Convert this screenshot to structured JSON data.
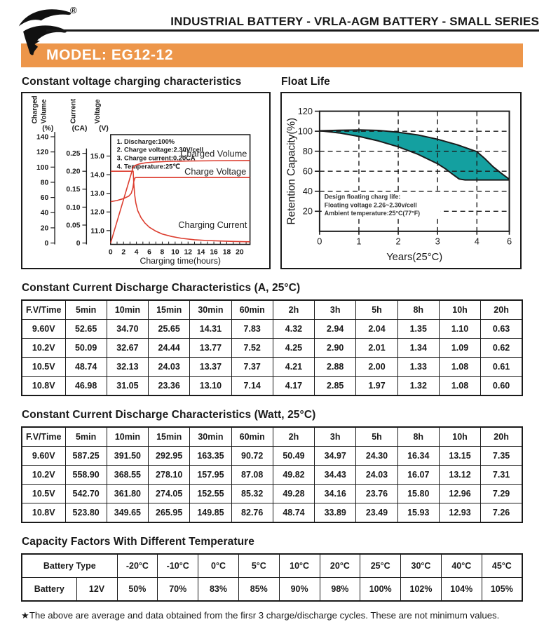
{
  "header": {
    "trademark": "®",
    "title": "INDUSTRIAL BATTERY - VRLA-AGM BATTERY - SMALL SERIES",
    "model": "MODEL: EG12-12"
  },
  "colors": {
    "accent_orange": "#ED964A",
    "band_teal": "#14A0A0",
    "curve_red": "#DC3C2E",
    "ink": "#1A1A1A"
  },
  "chart_data": [
    {
      "type": "line",
      "title": "Constant voltage charging characteristics",
      "x": {
        "label": "Charging time(hours)",
        "ticks": [
          0,
          2,
          4,
          6,
          8,
          10,
          12,
          14,
          16,
          18,
          20
        ],
        "range": [
          0,
          21.6
        ]
      },
      "axes": [
        {
          "name": "volume",
          "title_lines": [
            "Charged",
            "Volume"
          ],
          "unit": "(%)",
          "ticks": [
            0,
            20,
            40,
            60,
            80,
            100,
            120,
            140
          ],
          "tick_labels": [
            "0",
            "20",
            "40",
            "60",
            "80",
            "100",
            "120",
            "140"
          ]
        },
        {
          "name": "current",
          "title_lines": [
            "Current"
          ],
          "unit": "(CA)",
          "ticks": [
            0,
            0.05,
            0.1,
            0.15,
            0.2,
            0.25
          ],
          "tick_labels": [
            "0",
            "0.05",
            "0.10",
            "0.15",
            "0.20",
            "0.25"
          ]
        },
        {
          "name": "voltage",
          "title_lines": [
            "Voltage"
          ],
          "unit": "(V)",
          "ticks": [
            11,
            12,
            13,
            14,
            15
          ],
          "tick_labels": [
            "11.0",
            "12.0",
            "13.0",
            "14.0",
            "15.0"
          ]
        }
      ],
      "notes": [
        "1. Discharge:100%",
        "2. Charge voltage:2.30V/cell",
        "3. Charge current:0.20CA",
        "4. Temperature:25℃"
      ],
      "series": [
        {
          "name": "Charged Volume",
          "axis": "volume",
          "points": [
            [
              0,
              0
            ],
            [
              3.5,
              100
            ],
            [
              3.9,
              102.5
            ],
            [
              4.5,
              104.3
            ],
            [
              5.5,
              105.8
            ],
            [
              7,
              106.8
            ],
            [
              9,
              107.5
            ],
            [
              12,
              108
            ],
            [
              16,
              108.4
            ],
            [
              21.6,
              108.6
            ]
          ]
        },
        {
          "name": "Charge Voltage",
          "axis": "voltage",
          "points": [
            [
              0,
              12.55
            ],
            [
              1,
              12.62
            ],
            [
              2,
              12.72
            ],
            [
              2.8,
              12.85
            ],
            [
              3.2,
              13.0
            ],
            [
              3.45,
              13.3
            ],
            [
              3.6,
              13.65
            ],
            [
              3.75,
              13.82
            ],
            [
              3.9,
              13.85
            ],
            [
              21.6,
              13.85
            ]
          ]
        },
        {
          "name": "Charging Current",
          "axis": "current",
          "points": [
            [
              0,
              0.2
            ],
            [
              3.5,
              0.2
            ],
            [
              3.58,
              0.168
            ],
            [
              3.72,
              0.135
            ],
            [
              3.9,
              0.112
            ],
            [
              4.2,
              0.09
            ],
            [
              4.7,
              0.071
            ],
            [
              5.3,
              0.056
            ],
            [
              6,
              0.044
            ],
            [
              7,
              0.033
            ],
            [
              8,
              0.025
            ],
            [
              9.5,
              0.018
            ],
            [
              11,
              0.013
            ],
            [
              13,
              0.009
            ],
            [
              15,
              0.007
            ],
            [
              17,
              0.0055
            ],
            [
              19,
              0.0045
            ],
            [
              21.6,
              0.0035
            ]
          ]
        }
      ]
    },
    {
      "type": "area-band",
      "title": "Float Life",
      "x": {
        "label": "Years(25°C)",
        "ticks": [
          0,
          1,
          2,
          3,
          4,
          6
        ],
        "tick_labels": [
          "0",
          "1",
          "2",
          "3",
          "4",
          "6"
        ]
      },
      "y": {
        "label": "Retention Capacity(%)",
        "ticks": [
          120,
          100,
          80,
          60,
          40,
          20
        ],
        "gridlines": [
          100,
          80,
          60,
          40,
          20
        ],
        "range": [
          0,
          120
        ]
      },
      "notes": [
        "Design floating charg life:",
        "Floating voltage 2.26~2.30v/cell",
        "Ambient temperature:25°C(77°F)"
      ],
      "band": {
        "upper": [
          [
            0,
            100.5
          ],
          [
            0.5,
            101
          ],
          [
            1,
            101.3
          ],
          [
            1.5,
            100.8
          ],
          [
            2,
            99
          ],
          [
            2.5,
            96.3
          ],
          [
            3,
            92
          ],
          [
            3.5,
            86.5
          ],
          [
            4,
            79.5
          ],
          [
            4.5,
            72.5
          ],
          [
            5,
            64.5
          ],
          [
            5.5,
            58
          ],
          [
            6,
            52
          ]
        ],
        "lower": [
          [
            0,
            100.5
          ],
          [
            0.5,
            98.3
          ],
          [
            1,
            94.8
          ],
          [
            1.5,
            90.3
          ],
          [
            2,
            84.5
          ],
          [
            2.5,
            77
          ],
          [
            3,
            67.5
          ],
          [
            3.2,
            62.5
          ],
          [
            3.4,
            56.5
          ],
          [
            3.55,
            52.2
          ],
          [
            3.7,
            51.3
          ],
          [
            6,
            51.3
          ]
        ]
      }
    }
  ],
  "tables": [
    {
      "title": "Constant Current Discharge Characteristics (A, 25°C)",
      "headers": [
        "F.V/Time",
        "5min",
        "10min",
        "15min",
        "30min",
        "60min",
        "2h",
        "3h",
        "5h",
        "8h",
        "10h",
        "20h"
      ],
      "rows": [
        [
          "9.60V",
          "52.65",
          "34.70",
          "25.65",
          "14.31",
          "7.83",
          "4.32",
          "2.94",
          "2.04",
          "1.35",
          "1.10",
          "0.63"
        ],
        [
          "10.2V",
          "50.09",
          "32.67",
          "24.44",
          "13.77",
          "7.52",
          "4.25",
          "2.90",
          "2.01",
          "1.34",
          "1.09",
          "0.62"
        ],
        [
          "10.5V",
          "48.74",
          "32.13",
          "24.03",
          "13.37",
          "7.37",
          "4.21",
          "2.88",
          "2.00",
          "1.33",
          "1.08",
          "0.61"
        ],
        [
          "10.8V",
          "46.98",
          "31.05",
          "23.36",
          "13.10",
          "7.14",
          "4.17",
          "2.85",
          "1.97",
          "1.32",
          "1.08",
          "0.60"
        ]
      ]
    },
    {
      "title": "Constant Current Discharge Characteristics (Watt, 25°C)",
      "headers": [
        "F.V/Time",
        "5min",
        "10min",
        "15min",
        "30min",
        "60min",
        "2h",
        "3h",
        "5h",
        "8h",
        "10h",
        "20h"
      ],
      "rows": [
        [
          "9.60V",
          "587.25",
          "391.50",
          "292.95",
          "163.35",
          "90.72",
          "50.49",
          "34.97",
          "24.30",
          "16.34",
          "13.15",
          "7.35"
        ],
        [
          "10.2V",
          "558.90",
          "368.55",
          "278.10",
          "157.95",
          "87.08",
          "49.82",
          "34.43",
          "24.03",
          "16.07",
          "13.12",
          "7.31"
        ],
        [
          "10.5V",
          "542.70",
          "361.80",
          "274.05",
          "152.55",
          "85.32",
          "49.28",
          "34.16",
          "23.76",
          "15.80",
          "12.96",
          "7.29"
        ],
        [
          "10.8V",
          "523.80",
          "349.65",
          "265.95",
          "149.85",
          "82.76",
          "48.74",
          "33.89",
          "23.49",
          "15.93",
          "12.93",
          "7.26"
        ]
      ]
    },
    {
      "title": "Capacity Factors With Different Temperature",
      "headers": [
        {
          "label": "Battery Type",
          "colspan": 2
        },
        "-20°C",
        "-10°C",
        "0°C",
        "5°C",
        "10°C",
        "20°C",
        "25°C",
        "30°C",
        "40°C",
        "45°C"
      ],
      "rows": [
        [
          "Battery",
          "12V",
          "50%",
          "70%",
          "83%",
          "85%",
          "90%",
          "98%",
          "100%",
          "102%",
          "104%",
          "105%"
        ]
      ]
    }
  ],
  "footnote": "★The above are average and data obtained from the firsr 3 charge/discharge cycles. These are not minimum values."
}
